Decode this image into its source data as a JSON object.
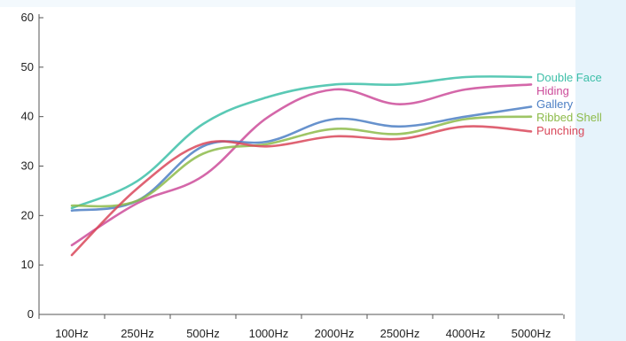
{
  "chart_data": {
    "type": "line",
    "title": "",
    "xlabel": "",
    "ylabel": "",
    "categories": [
      "100Hz",
      "250Hz",
      "500Hz",
      "1000Hz",
      "2000Hz",
      "2500Hz",
      "4000Hz",
      "5000Hz"
    ],
    "ylim": [
      0,
      60
    ],
    "yticks": [
      "0",
      "10",
      "20",
      "30",
      "40",
      "50",
      "60"
    ],
    "grid": false,
    "legend_position": "right",
    "series": [
      {
        "name": "Double Face",
        "color": "#3dbfa8",
        "values": [
          21.5,
          27,
          38.5,
          44,
          46.5,
          46.5,
          48,
          48
        ]
      },
      {
        "name": "Hiding",
        "color": "#cc4c9a",
        "values": [
          14,
          22.5,
          28,
          40,
          45.5,
          42.5,
          45.5,
          46.5
        ]
      },
      {
        "name": "Gallery",
        "color": "#4c7fc4",
        "values": [
          21,
          23,
          34,
          35,
          39.5,
          38,
          40,
          42
        ]
      },
      {
        "name": "Ribbed Shell",
        "color": "#8dbb4a",
        "values": [
          22,
          23,
          32.5,
          34.5,
          37.5,
          36.5,
          39.5,
          40
        ]
      },
      {
        "name": "Punching",
        "color": "#d9485a",
        "values": [
          12,
          25.5,
          34.5,
          34,
          36,
          35.5,
          38,
          37
        ]
      }
    ]
  }
}
